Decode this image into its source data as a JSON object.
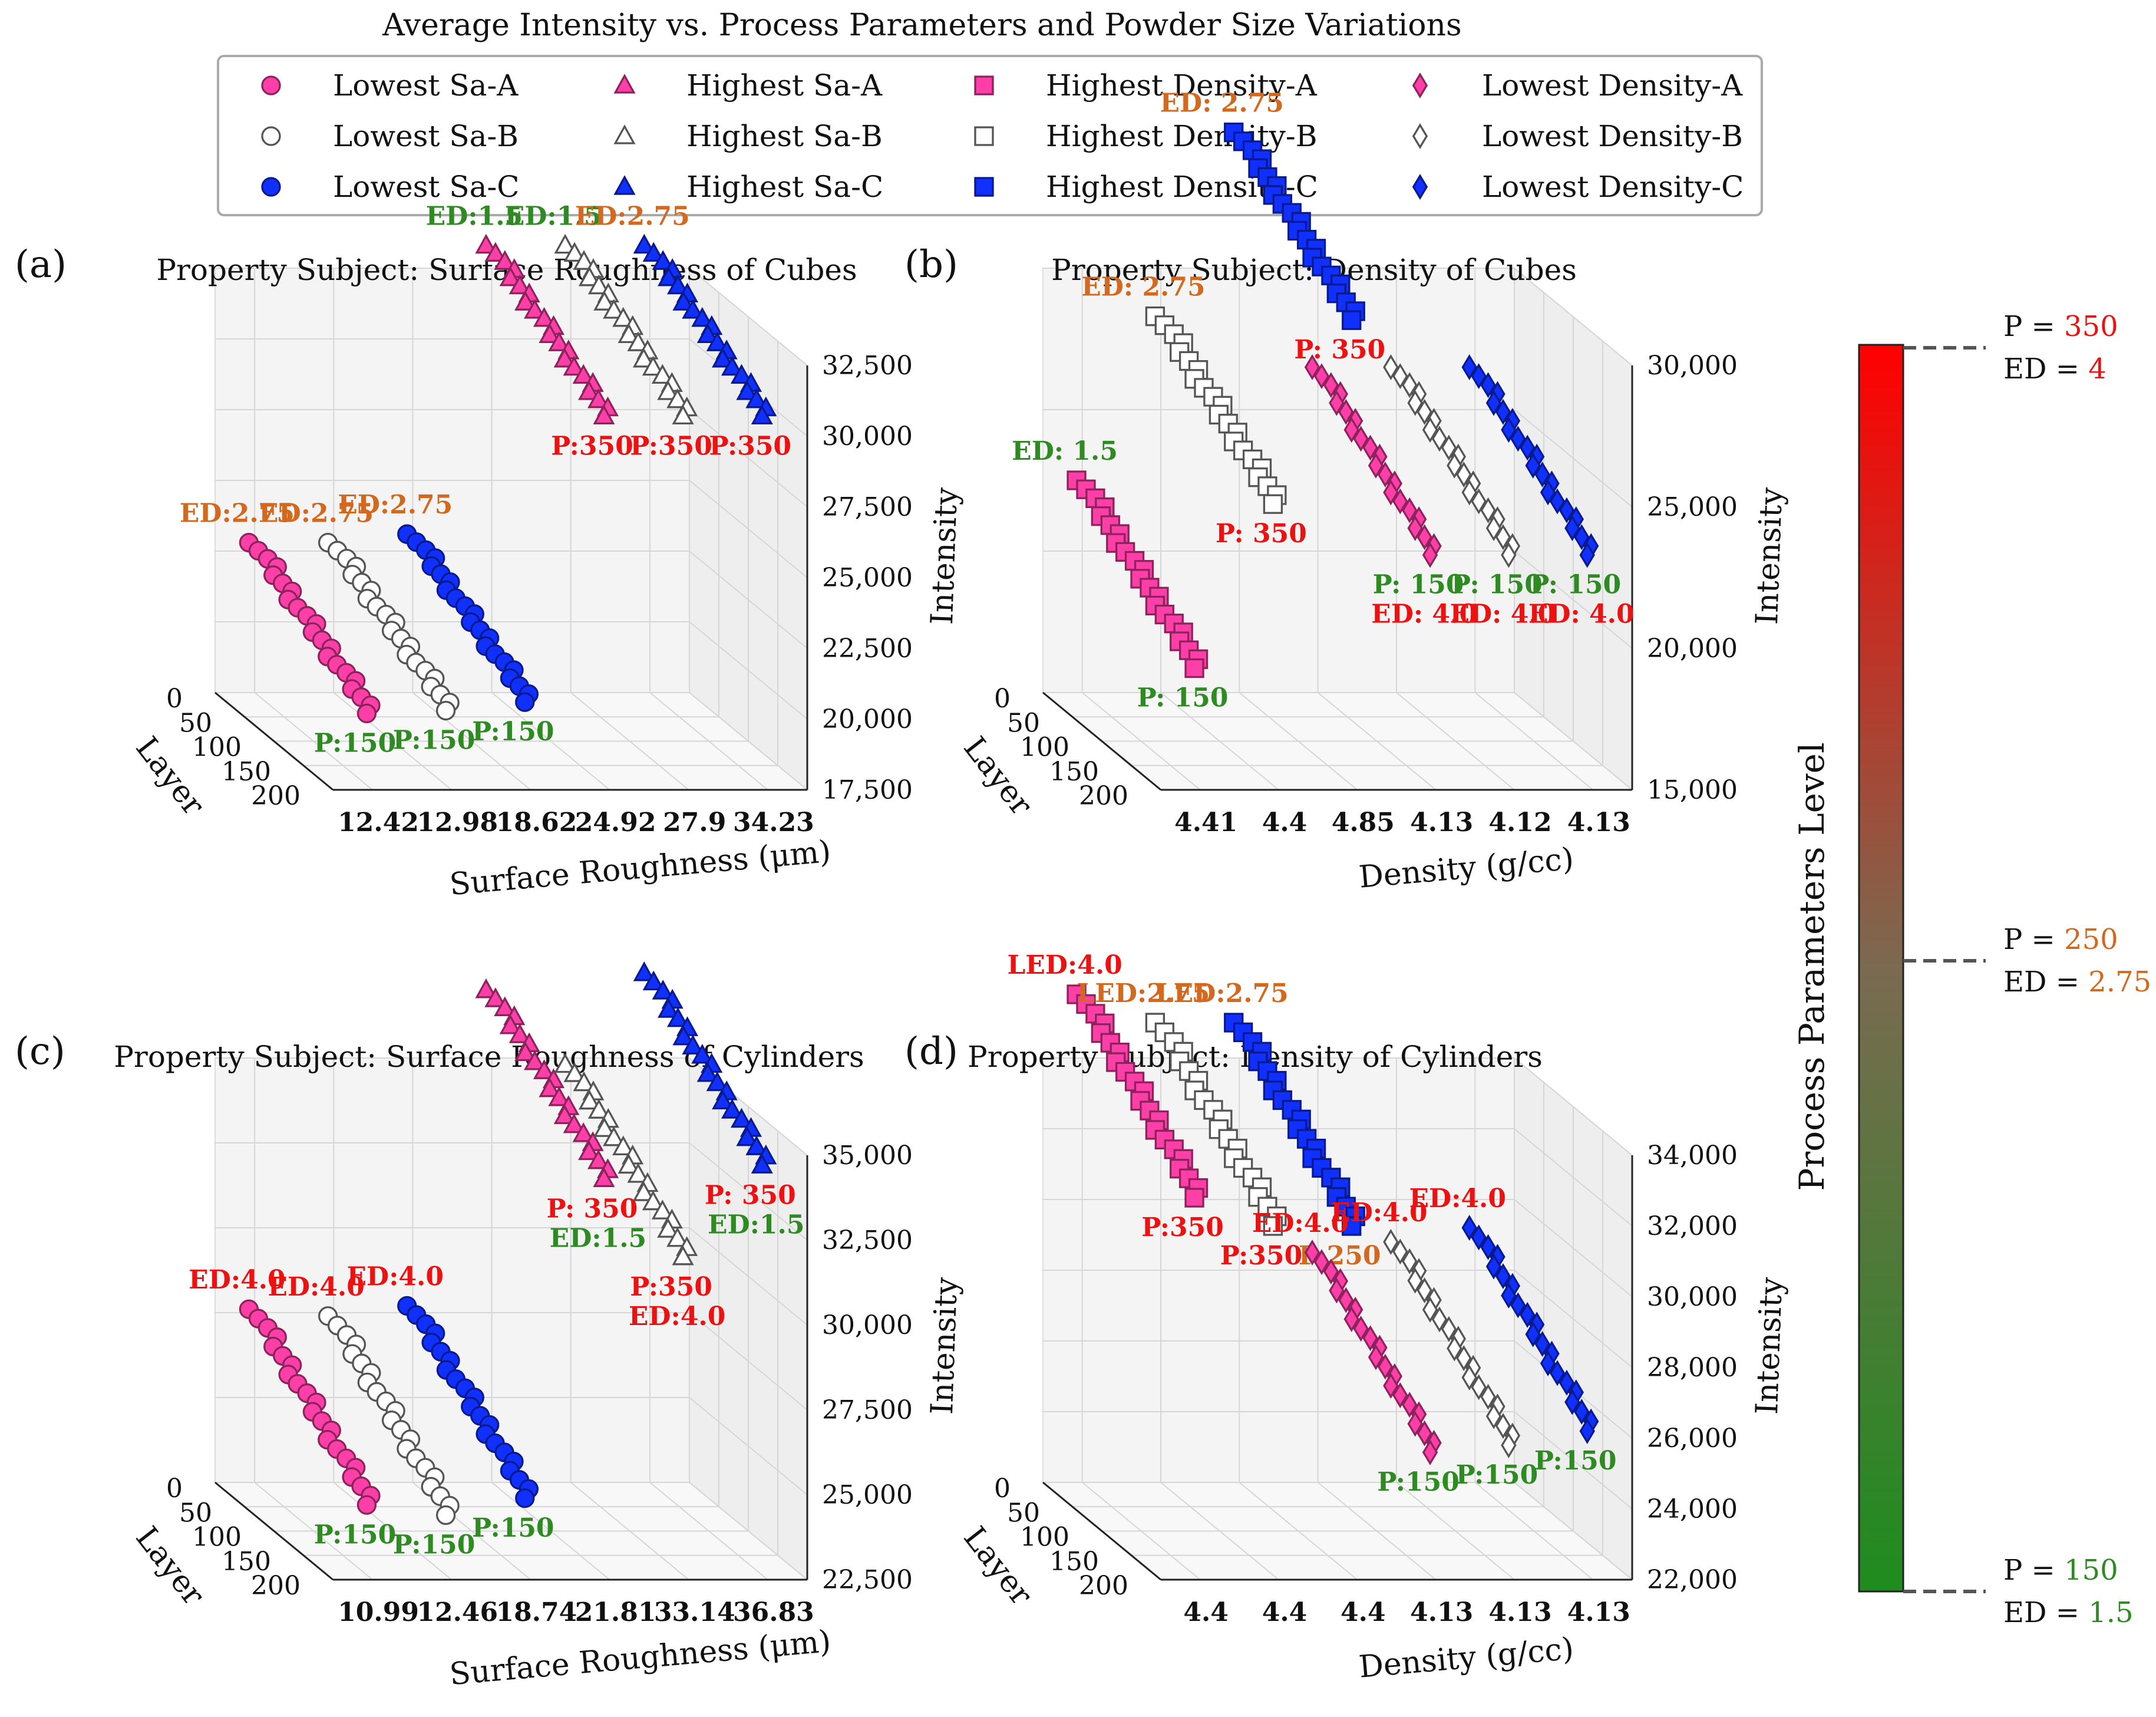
{
  "title": "Average Intensity vs. Process Parameters and Powder Size Variations",
  "colors": {
    "pink": "#ff3fa8",
    "gray": "#ffffff",
    "blue": "#1030ff",
    "green_label": "#2e8b22",
    "orange_label": "#d2691e",
    "red_label": "#ee1111"
  },
  "legend": [
    {
      "label": "Lowest Sa-A",
      "marker": "circle",
      "color": "#ff3fa8"
    },
    {
      "label": "Highest Sa-A",
      "marker": "triangle",
      "color": "#ff3fa8"
    },
    {
      "label": "Highest Density-A",
      "marker": "square",
      "color": "#ff3fa8"
    },
    {
      "label": "Lowest Density-A",
      "marker": "diamond",
      "color": "#ff3fa8"
    },
    {
      "label": "Lowest Sa-B",
      "marker": "circle",
      "color": "#ffffff"
    },
    {
      "label": "Highest Sa-B",
      "marker": "triangle",
      "color": "#ffffff"
    },
    {
      "label": "Highest Density-B",
      "marker": "square",
      "color": "#ffffff"
    },
    {
      "label": "Lowest Density-B",
      "marker": "diamond",
      "color": "#ffffff"
    },
    {
      "label": "Lowest Sa-C",
      "marker": "circle",
      "color": "#1030ff"
    },
    {
      "label": "Highest Sa-C",
      "marker": "triangle",
      "color": "#1030ff"
    },
    {
      "label": "Highest Density-C",
      "marker": "square",
      "color": "#1030ff"
    },
    {
      "label": "Lowest Density-C",
      "marker": "diamond",
      "color": "#1030ff"
    }
  ],
  "colorbar": {
    "label": "Process Parameters Level",
    "levels": [
      {
        "p_label": "P = ",
        "p_value": "350",
        "ed_label": "ED = ",
        "ed_value": "4",
        "color": "#ee1111"
      },
      {
        "p_label": "P = ",
        "p_value": "250",
        "ed_label": "ED = ",
        "ed_value": "2.75",
        "color": "#d2691e"
      },
      {
        "p_label": "P = ",
        "p_value": "150",
        "ed_label": "ED = ",
        "ed_value": "1.5",
        "color": "#2e8b22"
      }
    ]
  },
  "chart_data": [
    {
      "panel": "(a)",
      "title": "Property Subject: Surface Roughness of Cubes",
      "type": "scatter",
      "xlabel": "Surface Roughness (μm)",
      "ylabel": "Layer",
      "zlabel": "Intensity",
      "x_ticks": [
        "12.42",
        "12.98",
        "18.62",
        "24.92",
        "27.9",
        "34.23"
      ],
      "y_ticks": [
        "0",
        "50",
        "100",
        "150",
        "200"
      ],
      "z_ticks": [
        "17,500",
        "20,000",
        "22,500",
        "25,000",
        "27,500",
        "30,000",
        "32,500"
      ],
      "layers": [
        0,
        200
      ],
      "series": [
        {
          "name": "Lowest Sa-A",
          "x": "12.42",
          "intensity": [
            22800,
            20200
          ],
          "start_label": "ED:2.75",
          "start_color": "#d2691e",
          "end_label": "P:150",
          "end_color": "#2e8b22"
        },
        {
          "name": "Lowest Sa-B",
          "x": "12.98",
          "intensity": [
            22800,
            20300
          ],
          "start_label": "ED:2.75",
          "start_color": "#d2691e",
          "end_label": "P:150",
          "end_color": "#2e8b22"
        },
        {
          "name": "Lowest Sa-C",
          "x": "18.62",
          "intensity": [
            23100,
            20600
          ],
          "start_label": "ED:2.75",
          "start_color": "#d2691e",
          "end_label": "P:150",
          "end_color": "#2e8b22"
        },
        {
          "name": "Highest Sa-A",
          "x": "24.92",
          "intensity": [
            33300,
            30700
          ],
          "start_label": "ED:1.5",
          "start_color": "#2e8b22",
          "end_label": "P:350",
          "end_color": "#ee1111"
        },
        {
          "name": "Highest Sa-B",
          "x": "27.9",
          "intensity": [
            33300,
            30700
          ],
          "start_label": "ED:1.5",
          "start_color": "#2e8b22",
          "end_label": "P:350",
          "end_color": "#ee1111"
        },
        {
          "name": "Highest Sa-C",
          "x": "34.23",
          "intensity": [
            33300,
            30700
          ],
          "start_label": "ED:2.75",
          "start_color": "#d2691e",
          "end_label": "P:350",
          "end_color": "#ee1111"
        }
      ]
    },
    {
      "panel": "(b)",
      "title": "Property Subject: Density of Cubes",
      "type": "scatter",
      "xlabel": "Density (g/cc)",
      "ylabel": "Layer",
      "zlabel": "Intensity",
      "x_ticks": [
        "4.41",
        "4.4",
        "4.85",
        "4.13",
        "4.12",
        "4.13"
      ],
      "y_ticks": [
        "0",
        "50",
        "100",
        "150",
        "200"
      ],
      "z_ticks": [
        "15,000",
        "20,000",
        "25,000",
        "30,000"
      ],
      "layers": [
        0,
        200
      ],
      "series": [
        {
          "name": "Highest Density-A",
          "x": "4.41",
          "intensity": [
            22500,
            19300
          ],
          "start_label": "ED: 1.5",
          "start_color": "#2e8b22",
          "end_label": "P: 150",
          "end_color": "#2e8b22"
        },
        {
          "name": "Highest Density-B",
          "x": "4.4",
          "intensity": [
            28300,
            25100
          ],
          "start_label": "ED: 2.75",
          "start_color": "#d2691e",
          "end_label": "P: 350",
          "end_color": "#ee1111"
        },
        {
          "name": "Highest Density-C",
          "x": "4.85",
          "intensity": [
            34800,
            31600
          ],
          "start_label": "ED: 2.75",
          "start_color": "#d2691e",
          "end_label": "P: 350",
          "end_color": "#ee1111"
        },
        {
          "name": "Lowest Density-A",
          "x": "4.13",
          "intensity": [
            26500,
            23300
          ],
          "start_label": "",
          "start_color": "#2e8b22",
          "end_label": "P: 150",
          "end_color": "#2e8b22",
          "extra_label": "ED: 4.0",
          "extra_color": "#ee1111"
        },
        {
          "name": "Lowest Density-B",
          "x": "4.12",
          "intensity": [
            26500,
            23300
          ],
          "start_label": "",
          "start_color": "#2e8b22",
          "end_label": "P: 150",
          "end_color": "#2e8b22",
          "extra_label": "ED: 4.0",
          "extra_color": "#ee1111"
        },
        {
          "name": "Lowest Density-C",
          "x": "4.13",
          "intensity": [
            26500,
            23300
          ],
          "start_label": "",
          "start_color": "#2e8b22",
          "end_label": "P: 150",
          "end_color": "#2e8b22",
          "extra_label": "ED: 4.0",
          "extra_color": "#ee1111"
        }
      ]
    },
    {
      "panel": "(c)",
      "title": "Property Subject: Surface Roughness of Cylinders",
      "type": "scatter",
      "xlabel": "Surface Roughness (μm)",
      "ylabel": "Layer",
      "zlabel": "Intensity",
      "x_ticks": [
        "10.99",
        "12.46",
        "18.74",
        "21.81",
        "33.14",
        "36.83"
      ],
      "y_ticks": [
        "0",
        "50",
        "100",
        "150",
        "200"
      ],
      "z_ticks": [
        "22,500",
        "25,000",
        "27,500",
        "30,000",
        "32,500",
        "35,000"
      ],
      "layers": [
        0,
        200
      ],
      "series": [
        {
          "name": "Lowest Sa-A",
          "x": "10.99",
          "intensity": [
            27600,
            24700
          ],
          "start_label": "ED:4.0",
          "start_color": "#ee1111",
          "end_label": "P:150",
          "end_color": "#2e8b22"
        },
        {
          "name": "Lowest Sa-B",
          "x": "12.46",
          "intensity": [
            27400,
            24400
          ],
          "start_label": "ED:4.0",
          "start_color": "#ee1111",
          "end_label": "P:150",
          "end_color": "#2e8b22"
        },
        {
          "name": "Lowest Sa-C",
          "x": "18.74",
          "intensity": [
            27700,
            24900
          ],
          "start_label": "ED:4.0",
          "start_color": "#ee1111",
          "end_label": "P:150",
          "end_color": "#2e8b22"
        },
        {
          "name": "Highest Sa-A",
          "x": "21.81",
          "intensity": [
            37000,
            34300
          ],
          "start_label": "",
          "start_color": "#ee1111",
          "end_label": "P: 350",
          "end_color": "#ee1111",
          "extra_label": "ED:1.5",
          "extra_color": "#2e8b22"
        },
        {
          "name": "Highest Sa-B",
          "x": "33.14",
          "intensity": [
            34800,
            32000
          ],
          "start_label": "",
          "start_color": "#ee1111",
          "end_label": "P:350",
          "end_color": "#ee1111",
          "extra_label": "ED:4.0",
          "extra_color": "#ee1111"
        },
        {
          "name": "Highest Sa-C",
          "x": "36.83",
          "intensity": [
            37500,
            34700
          ],
          "start_label": "",
          "start_color": "#ee1111",
          "end_label": "P: 350",
          "end_color": "#ee1111",
          "extra_label": "ED:1.5",
          "extra_color": "#2e8b22"
        }
      ]
    },
    {
      "panel": "(d)",
      "title": "Property Subject: Density of Cylinders",
      "type": "scatter",
      "xlabel": "Density (g/cc)",
      "ylabel": "Layer",
      "zlabel": "Intensity",
      "x_ticks": [
        "4.4",
        "4.4",
        "4.4",
        "4.13",
        "4.13",
        "4.13"
      ],
      "y_ticks": [
        "0",
        "50",
        "100",
        "150",
        "200"
      ],
      "z_ticks": [
        "22,000",
        "24,000",
        "26,000",
        "28,000",
        "30,000",
        "32,000",
        "34,000"
      ],
      "layers": [
        0,
        200
      ],
      "series": [
        {
          "name": "Highest Density-A",
          "x": "4.4",
          "intensity": [
            35800,
            32800
          ],
          "start_label": "LED:4.0",
          "start_color": "#ee1111",
          "end_label": "P:350",
          "end_color": "#ee1111"
        },
        {
          "name": "Highest Density-B",
          "x": "4.4",
          "intensity": [
            35000,
            32000
          ],
          "start_label": "LED:2.75",
          "start_color": "#d2691e",
          "end_label": "P:350",
          "end_color": "#ee1111"
        },
        {
          "name": "Highest Density-C",
          "x": "4.4",
          "intensity": [
            35000,
            32000
          ],
          "start_label": "LED:2.75",
          "start_color": "#d2691e",
          "end_label": "P:250",
          "end_color": "#d2691e"
        },
        {
          "name": "Lowest Density-A",
          "x": "4.13",
          "intensity": [
            28500,
            25600
          ],
          "start_label": "ED:4.0",
          "start_color": "#ee1111",
          "end_label": "P:150",
          "end_color": "#2e8b22"
        },
        {
          "name": "Lowest Density-B",
          "x": "4.13",
          "intensity": [
            28800,
            25800
          ],
          "start_label": "ED:4.0",
          "start_color": "#ee1111",
          "end_label": "P:150",
          "end_color": "#2e8b22"
        },
        {
          "name": "Lowest Density-C",
          "x": "4.13",
          "intensity": [
            29200,
            26200
          ],
          "start_label": "ED:4.0",
          "start_color": "#ee1111",
          "end_label": "P:150",
          "end_color": "#2e8b22"
        }
      ]
    }
  ]
}
